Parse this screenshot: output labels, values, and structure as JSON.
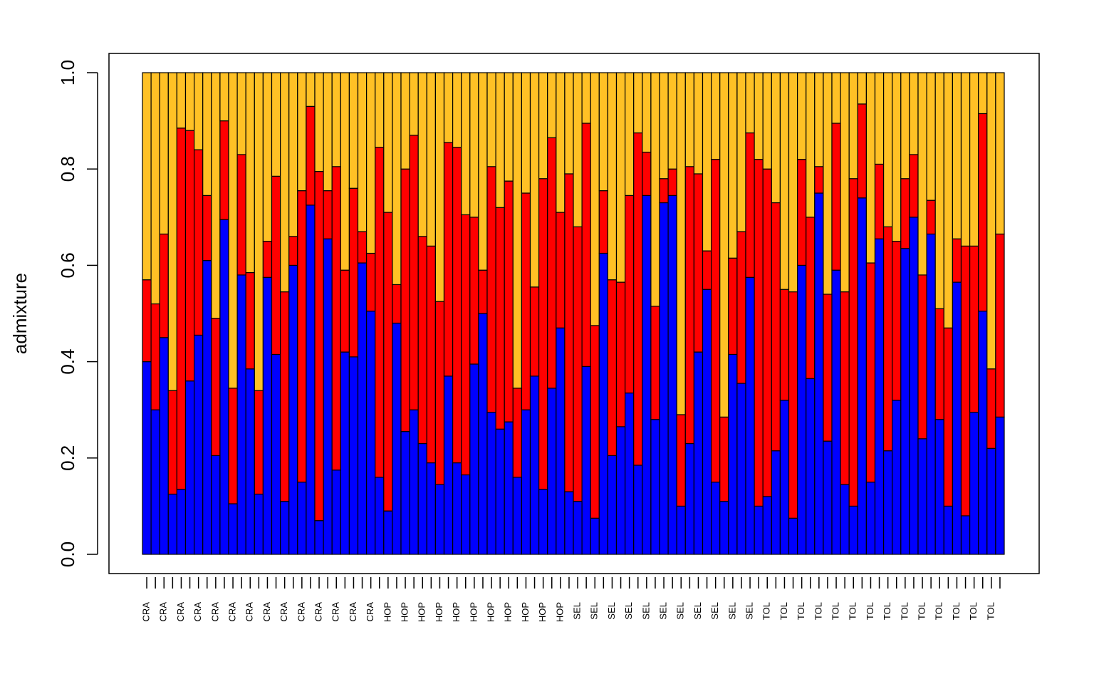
{
  "chart_data": {
    "type": "stacked_bar",
    "ylabel": "admixture",
    "ylim": [
      0,
      1
    ],
    "yticks": [
      {
        "value": 0,
        "label": "0.0"
      },
      0.2,
      0.4,
      0.6,
      0.8,
      {
        "value": 1,
        "label": "1.0"
      }
    ],
    "categories": [
      "CRA",
      null,
      "CRA",
      null,
      "CRA",
      null,
      "CRA",
      null,
      "CRA",
      null,
      "CRA",
      null,
      "CRA",
      null,
      "CRA",
      null,
      "CRA",
      null,
      "CRA",
      null,
      "CRA",
      null,
      "CRA",
      null,
      "CRA",
      null,
      "CRA",
      null,
      "HOP",
      null,
      "HOP",
      null,
      "HOP",
      null,
      "HOP",
      null,
      "HOP",
      null,
      "HOP",
      null,
      "HOP",
      null,
      "HOP",
      null,
      "HOP",
      null,
      "HOP",
      null,
      "HOP",
      null,
      "SEL",
      null,
      "SEL",
      null,
      "SEL",
      null,
      "SEL",
      null,
      "SEL",
      null,
      "SEL",
      null,
      "SEL",
      null,
      "SEL",
      null,
      "SEL",
      null,
      "SEL",
      null,
      "SEL",
      null,
      "TOL",
      null,
      "TOL",
      null,
      "TOL",
      null,
      "TOL",
      null,
      "TOL",
      null,
      "TOL",
      null,
      "TOL",
      null,
      "TOL",
      null,
      "TOL",
      null,
      "TOL",
      null,
      "TOL",
      null,
      "TOL",
      null,
      "TOL",
      null,
      "TOL",
      null
    ],
    "series": [
      {
        "color": "#0000ff",
        "values": [
          0.4,
          0.3,
          0.45,
          0.125,
          0.135,
          0.36,
          0.455,
          0.61,
          0.205,
          0.695,
          0.105,
          0.58,
          0.385,
          0.125,
          0.575,
          0.415,
          0.11,
          0.6,
          0.15,
          0.725,
          0.07,
          0.655,
          0.175,
          0.42,
          0.41,
          0.605,
          0.505,
          0.16,
          0.09,
          0.48,
          0.255,
          0.3,
          0.23,
          0.19,
          0.145,
          0.37,
          0.19,
          0.165,
          0.395,
          0.5,
          0.295,
          0.26,
          0.275,
          0.16,
          0.3,
          0.37,
          0.135,
          0.345,
          0.47,
          0.13,
          0.11,
          0.39,
          0.075,
          0.625,
          0.205,
          0.265,
          0.335,
          0.185,
          0.745,
          0.28,
          0.73,
          0.745,
          0.1,
          0.23,
          0.42,
          0.55,
          0.15,
          0.11,
          0.415,
          0.355,
          0.575,
          0.1,
          0.12,
          0.215,
          0.32,
          0.075,
          0.6,
          0.365,
          0.75,
          0.235,
          0.59,
          0.145,
          0.1,
          0.74,
          0.15,
          0.655,
          0.215,
          0.32,
          0.635,
          0.7,
          0.24,
          0.665,
          0.28,
          0.1,
          0.565,
          0.08,
          0.295,
          0.505,
          0.22,
          0.285
        ]
      },
      {
        "color": "#ff0000",
        "values": [
          0.17,
          0.22,
          0.215,
          0.215,
          0.75,
          0.52,
          0.385,
          0.135,
          0.285,
          0.205,
          0.24,
          0.25,
          0.2,
          0.215,
          0.075,
          0.37,
          0.435,
          0.06,
          0.605,
          0.205,
          0.725,
          0.1,
          0.63,
          0.17,
          0.35,
          0.065,
          0.12,
          0.685,
          0.62,
          0.08,
          0.545,
          0.57,
          0.43,
          0.45,
          0.38,
          0.485,
          0.655,
          0.54,
          0.305,
          0.09,
          0.51,
          0.46,
          0.5,
          0.185,
          0.45,
          0.185,
          0.645,
          0.52,
          0.24,
          0.66,
          0.57,
          0.505,
          0.4,
          0.13,
          0.365,
          0.3,
          0.41,
          0.69,
          0.09,
          0.235,
          0.05,
          0.055,
          0.19,
          0.575,
          0.37,
          0.08,
          0.67,
          0.175,
          0.2,
          0.315,
          0.3,
          0.72,
          0.68,
          0.515,
          0.23,
          0.47,
          0.22,
          0.335,
          0.055,
          0.305,
          0.305,
          0.4,
          0.68,
          0.195,
          0.455,
          0.155,
          0.465,
          0.33,
          0.145,
          0.13,
          0.34,
          0.07,
          0.23,
          0.37,
          0.09,
          0.56,
          0.345,
          0.41,
          0.165,
          0.38
        ]
      },
      {
        "color": "#ffc125",
        "values": [
          0.43,
          0.48,
          0.335,
          0.66,
          0.115,
          0.12,
          0.16,
          0.255,
          0.51,
          0.1,
          0.655,
          0.17,
          0.415,
          0.66,
          0.35,
          0.215,
          0.455,
          0.34,
          0.245,
          0.07,
          0.205,
          0.245,
          0.195,
          0.41,
          0.24,
          0.33,
          0.375,
          0.155,
          0.29,
          0.44,
          0.2,
          0.13,
          0.34,
          0.36,
          0.475,
          0.145,
          0.155,
          0.295,
          0.3,
          0.41,
          0.195,
          0.28,
          0.225,
          0.655,
          0.25,
          0.445,
          0.22,
          0.135,
          0.29,
          0.21,
          0.32,
          0.105,
          0.525,
          0.245,
          0.43,
          0.435,
          0.255,
          0.125,
          0.165,
          0.485,
          0.22,
          0.2,
          0.71,
          0.195,
          0.21,
          0.37,
          0.18,
          0.715,
          0.385,
          0.33,
          0.125,
          0.18,
          0.2,
          0.27,
          0.45,
          0.455,
          0.18,
          0.3,
          0.195,
          0.46,
          0.105,
          0.455,
          0.22,
          0.065,
          0.395,
          0.19,
          0.32,
          0.35,
          0.22,
          0.17,
          0.42,
          0.265,
          0.49,
          0.53,
          0.345,
          0.36,
          0.36,
          0.085,
          0.615,
          0.335
        ]
      }
    ]
  }
}
